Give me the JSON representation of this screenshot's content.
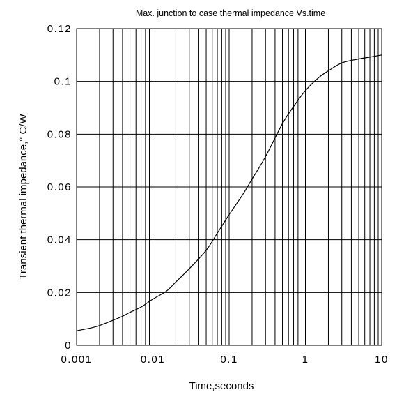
{
  "chart_data": {
    "type": "line",
    "title": "Max. junction to case thermal impedance Vs.time",
    "xlabel": "Time,seconds",
    "ylabel": "Transient thermal impedance,° C/W",
    "x_scale": "log",
    "xlim": [
      0.001,
      10
    ],
    "ylim": [
      0,
      0.12
    ],
    "x_ticks": [
      "0.001",
      "0.01",
      "0.1",
      "1",
      "10"
    ],
    "y_ticks": [
      "0",
      "0.02",
      "0.04",
      "0.06",
      "0.08",
      "0.1",
      "0.12"
    ],
    "x_tick_values": [
      0.001,
      0.01,
      0.1,
      1,
      10
    ],
    "y_tick_values": [
      0,
      0.02,
      0.04,
      0.06,
      0.08,
      0.1,
      0.12
    ],
    "grid": true,
    "series": [
      {
        "x": [
          0.001,
          0.0015,
          0.002,
          0.003,
          0.004,
          0.005,
          0.007,
          0.01,
          0.015,
          0.02,
          0.03,
          0.05,
          0.07,
          0.1,
          0.15,
          0.2,
          0.3,
          0.5,
          0.7,
          1,
          1.5,
          2,
          3,
          5,
          7,
          10
        ],
        "values": [
          0.0055,
          0.0065,
          0.0075,
          0.0095,
          0.011,
          0.0125,
          0.0145,
          0.0175,
          0.0205,
          0.024,
          0.029,
          0.036,
          0.0425,
          0.0495,
          0.057,
          0.063,
          0.0715,
          0.084,
          0.0905,
          0.0965,
          0.1015,
          0.104,
          0.107,
          0.1085,
          0.1092,
          0.11
        ]
      }
    ]
  }
}
